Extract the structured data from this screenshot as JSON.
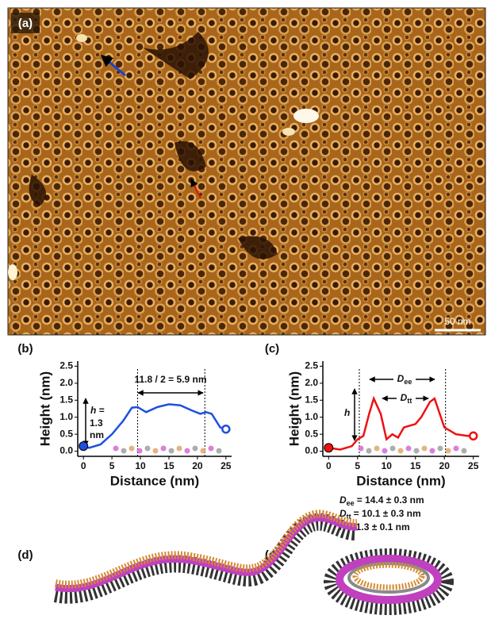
{
  "panels": {
    "a": "(a)",
    "b": "(b)",
    "c": "(c)",
    "d": "(d)",
    "e": "(e)"
  },
  "image": {
    "scale_bar": "50 nm"
  },
  "chart_data": [
    {
      "type": "line",
      "xlabel": "Distance (nm)",
      "ylabel": "Height (nm)",
      "x": [
        0,
        1,
        3,
        5,
        7,
        8.5,
        9.5,
        11,
        13,
        15,
        17,
        19,
        20.5,
        21.5,
        22.5,
        24,
        25
      ],
      "series": [
        {
          "color": "#1f4fe0",
          "values": [
            0.15,
            0.1,
            0.2,
            0.5,
            0.9,
            1.28,
            1.3,
            1.15,
            1.3,
            1.38,
            1.35,
            1.2,
            1.1,
            1.15,
            1.1,
            0.7,
            0.65
          ]
        }
      ],
      "xlim": [
        -1,
        26
      ],
      "ylim": [
        -0.15,
        2.65
      ],
      "xticks": [
        0,
        5,
        10,
        15,
        20,
        25
      ],
      "yticks": [
        {
          "value": 0,
          "label": "0.0"
        },
        {
          "value": 0.5,
          "label": "0.5"
        },
        {
          "value": 1,
          "label": "1.0"
        },
        {
          "value": 1.5,
          "label": "1.5"
        },
        {
          "value": 2,
          "label": "2.0"
        },
        {
          "value": 2.5,
          "label": "2.5"
        }
      ],
      "vlines": [
        9.5,
        21.3
      ],
      "span_label": "11.8 / 2 = 5.9 nm",
      "h_label": [
        "h",
        "=",
        "1.3",
        "nm"
      ]
    },
    {
      "type": "line",
      "xlabel": "Distance (nm)",
      "ylabel": "Height (nm)",
      "x": [
        0,
        2,
        4,
        5,
        6,
        7,
        7.8,
        9,
        10,
        11,
        12,
        13,
        15,
        16,
        17.5,
        18.3,
        19,
        20,
        21,
        22,
        24,
        25
      ],
      "series": [
        {
          "color": "#ee1111",
          "values": [
            0.1,
            0.05,
            0.15,
            0.35,
            0.45,
            1.1,
            1.55,
            1.1,
            0.35,
            0.5,
            0.4,
            0.7,
            0.8,
            1.0,
            1.45,
            1.55,
            1.2,
            0.7,
            0.6,
            0.5,
            0.45,
            0.45
          ]
        }
      ],
      "xlim": [
        -1,
        26
      ],
      "ylim": [
        -0.15,
        2.65
      ],
      "xticks": [
        0,
        5,
        10,
        15,
        20,
        25
      ],
      "yticks": [
        {
          "value": 0,
          "label": "0.0"
        },
        {
          "value": 0.5,
          "label": "0.5"
        },
        {
          "value": 1,
          "label": "1.0"
        },
        {
          "value": 1.5,
          "label": "1.5"
        },
        {
          "value": 2,
          "label": "2.0"
        },
        {
          "value": 2.5,
          "label": "2.5"
        }
      ],
      "vlines": [
        5.3,
        20.2
      ],
      "dee_label": [
        "D",
        "ee"
      ],
      "dtt_label": [
        "D",
        "tt"
      ],
      "h_label": "h",
      "results": [
        [
          "D",
          "ee",
          "= 14.4 ± 0.3 nm"
        ],
        [
          "D",
          "tt",
          "= 10.1 ± 0.3 nm"
        ],
        [
          "h",
          "= 1.3 ± 0.1 nm"
        ]
      ]
    }
  ]
}
